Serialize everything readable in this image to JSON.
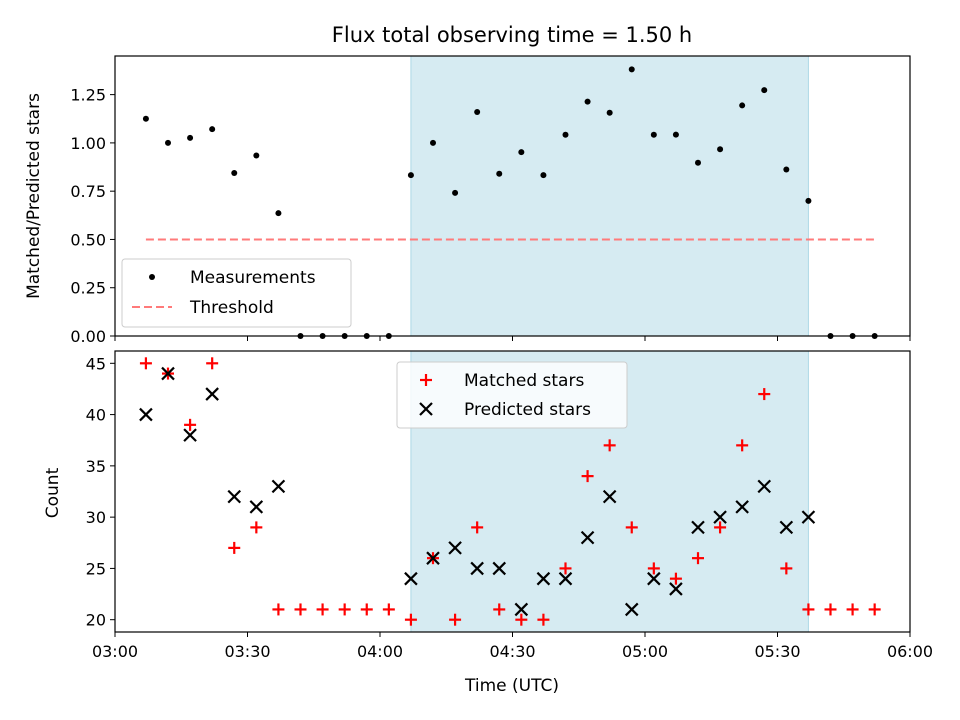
{
  "figure": {
    "title": "Flux total observing time = 1.50 h"
  },
  "chart_data": [
    {
      "type": "scatter",
      "ylabel": "Matched/Predicted stars",
      "xlabel": "",
      "xlim": [
        "03:00",
        "06:00"
      ],
      "ylim": [
        0,
        1.45
      ],
      "xticks": [
        "03:00",
        "03:30",
        "04:00",
        "04:30",
        "05:00",
        "05:30",
        "06:00"
      ],
      "yticks": [
        "0.00",
        "0.25",
        "0.50",
        "0.75",
        "1.00",
        "1.25"
      ],
      "highlight_span": {
        "from": "04:07",
        "to": "05:37",
        "color": "#add8e6"
      },
      "legend_location": "lower-left",
      "series": [
        {
          "name": "Measurements",
          "marker": "dot",
          "color": "#000000",
          "x": [
            "03:07",
            "03:12",
            "03:17",
            "03:22",
            "03:27",
            "03:32",
            "03:37",
            "03:42",
            "03:47",
            "03:52",
            "03:57",
            "04:02",
            "04:07",
            "04:12",
            "04:17",
            "04:22",
            "04:27",
            "04:32",
            "04:37",
            "04:42",
            "04:47",
            "04:52",
            "04:57",
            "05:02",
            "05:07",
            "05:12",
            "05:17",
            "05:22",
            "05:27",
            "05:32",
            "05:37",
            "05:42",
            "05:47",
            "05:52"
          ],
          "y": [
            1.125,
            1.0,
            1.026,
            1.071,
            0.844,
            0.935,
            0.636,
            0,
            0,
            0,
            0,
            0,
            0.833,
            1.0,
            0.741,
            1.16,
            0.84,
            0.952,
            0.833,
            1.042,
            1.214,
            1.156,
            1.381,
            1.042,
            1.043,
            0.897,
            0.967,
            1.194,
            1.273,
            0.862,
            0.7,
            0,
            0,
            0
          ]
        },
        {
          "name": "Threshold",
          "line_style": "dashed",
          "color": "#ff7a7a",
          "x": [
            "03:07",
            "05:52"
          ],
          "y": [
            0.5,
            0.5
          ]
        }
      ]
    },
    {
      "type": "scatter",
      "xlabel": "Time (UTC)",
      "ylabel": "Count",
      "xlim": [
        "03:00",
        "06:00"
      ],
      "ylim": [
        18.8,
        46.2
      ],
      "xticks": [
        "03:00",
        "03:30",
        "04:00",
        "04:30",
        "05:00",
        "05:30",
        "06:00"
      ],
      "yticks": [
        "20",
        "25",
        "30",
        "35",
        "40",
        "45"
      ],
      "highlight_span": {
        "from": "04:07",
        "to": "05:37",
        "color": "#add8e6"
      },
      "legend_location": "upper-center",
      "series": [
        {
          "name": "Matched stars",
          "marker": "plus",
          "color": "#ff0000",
          "x": [
            "03:07",
            "03:12",
            "03:17",
            "03:22",
            "03:27",
            "03:32",
            "03:37",
            "03:42",
            "03:47",
            "03:52",
            "03:57",
            "04:02",
            "04:07",
            "04:12",
            "04:17",
            "04:22",
            "04:27",
            "04:32",
            "04:37",
            "04:42",
            "04:47",
            "04:52",
            "04:57",
            "05:02",
            "05:07",
            "05:12",
            "05:17",
            "05:22",
            "05:27",
            "05:32",
            "05:37",
            "05:42",
            "05:47",
            "05:52"
          ],
          "y": [
            45,
            44,
            39,
            45,
            27,
            29,
            21,
            21,
            21,
            21,
            21,
            21,
            20,
            26,
            20,
            29,
            21,
            20,
            20,
            25,
            34,
            37,
            29,
            25,
            24,
            26,
            29,
            37,
            42,
            25,
            21,
            21,
            21,
            21
          ]
        },
        {
          "name": "Predicted stars",
          "marker": "x",
          "color": "#000000",
          "x": [
            "03:07",
            "03:12",
            "03:17",
            "03:22",
            "03:27",
            "03:32",
            "03:37",
            "04:07",
            "04:12",
            "04:17",
            "04:22",
            "04:27",
            "04:32",
            "04:37",
            "04:42",
            "04:47",
            "04:52",
            "04:57",
            "05:02",
            "05:07",
            "05:12",
            "05:17",
            "05:22",
            "05:27",
            "05:32",
            "05:37"
          ],
          "y": [
            40,
            44,
            38,
            42,
            32,
            31,
            33,
            24,
            26,
            27,
            25,
            25,
            21,
            24,
            24,
            28,
            32,
            21,
            24,
            23,
            29,
            30,
            31,
            33,
            29,
            30
          ]
        }
      ]
    }
  ]
}
